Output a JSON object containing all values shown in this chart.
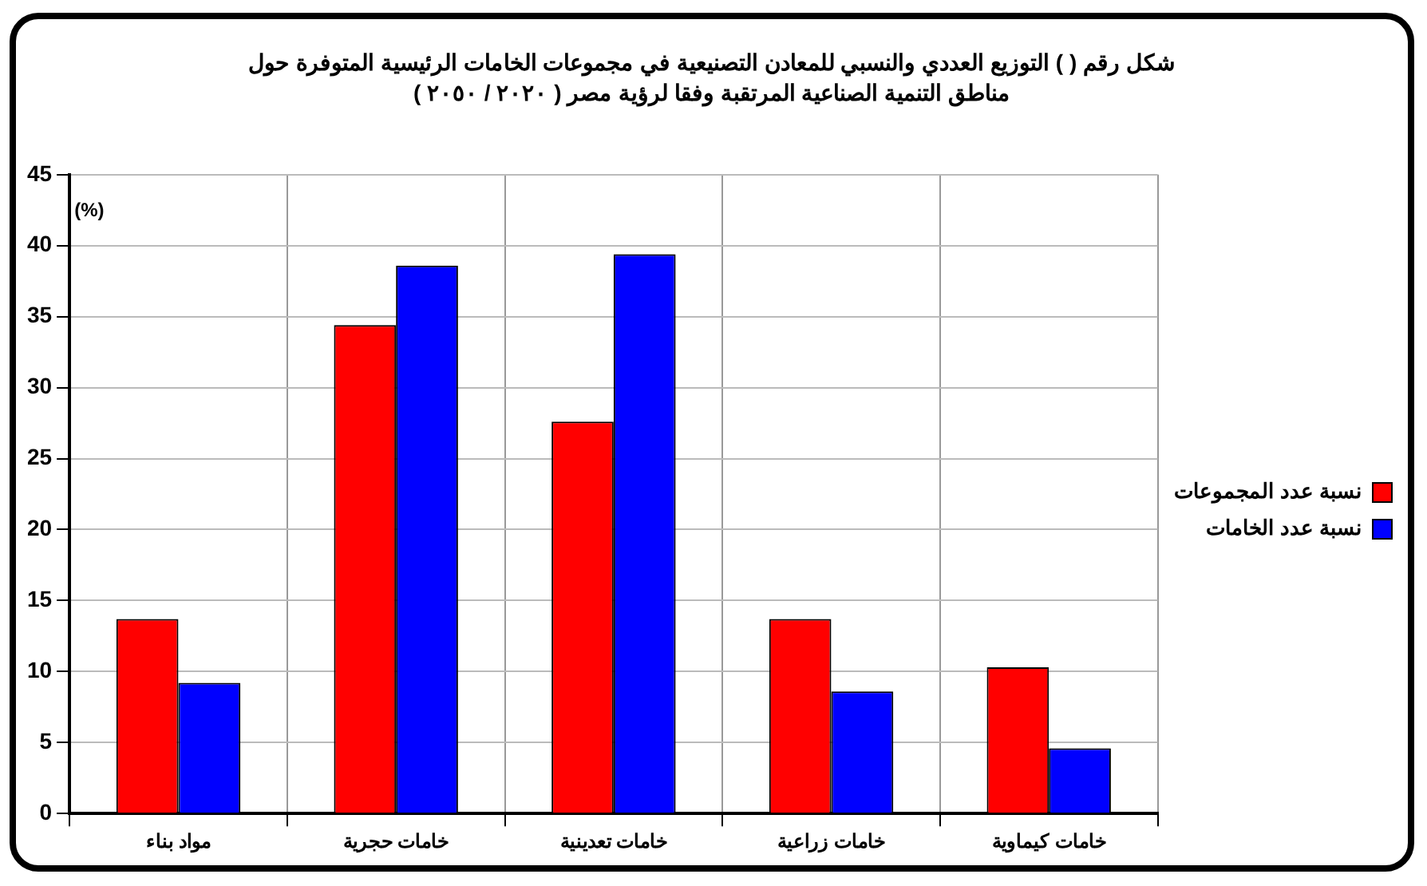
{
  "chart_data": {
    "type": "bar",
    "title": "شكل رقم ( ) التوزيع العددي والنسبي للمعادن التصنيعية في مجموعات الخامات الرئيسية المتوفرة حول مناطق التنمية الصناعية المرتقبة وفقا لرؤية مصر ( ٢٠٢٠ / ٢٠٥٠ )",
    "ylabel": "(%)",
    "categories": [
      "مواد بناء",
      "خامات حجرية",
      "خامات تعدينية",
      "خامات زراعية",
      "خامات كيماوية"
    ],
    "series": [
      {
        "name": "نسبة عدد المجموعات",
        "color": "#ff0000",
        "values": [
          13.7,
          34.4,
          27.6,
          13.7,
          10.3
        ]
      },
      {
        "name": "نسبة عدد الخامات",
        "color": "#0000ff",
        "values": [
          9.2,
          38.6,
          39.4,
          8.6,
          4.6
        ]
      }
    ],
    "ylim": [
      0,
      45
    ],
    "yticks": [
      0,
      5,
      10,
      15,
      20,
      25,
      30,
      35,
      40,
      45
    ],
    "grid": true,
    "legend": "right"
  }
}
